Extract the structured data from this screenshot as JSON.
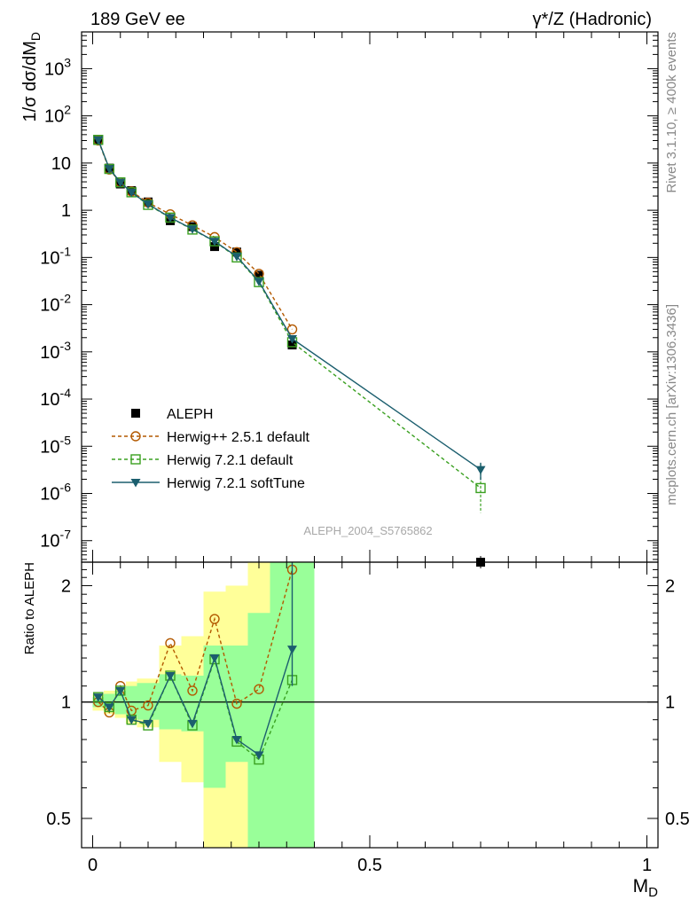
{
  "header": {
    "left_title": "189 GeV ee",
    "right_title": "γ*/Z (Hadronic)"
  },
  "side_text": {
    "rivet": "Rivet 3.1.10, ≥ 400k events",
    "mcplots": "mcplots.cern.ch [arXiv:1306.3436]"
  },
  "colors": {
    "aleph": "#000000",
    "herwigpp": "#b35900",
    "herwig721_default": "#3aa020",
    "herwig721_softtune": "#1b5e6e",
    "band_inner": "#99ff99",
    "band_outer": "#ffff99"
  },
  "chart_data": [
    {
      "type": "line",
      "panel": "main",
      "ylabel": "1/σ  dσ/dM_D",
      "yscale": "log",
      "ylim": [
        3.5e-08,
        6000
      ],
      "xlim": [
        -0.02,
        1.02
      ],
      "y_tick_labels": [
        "10^-7",
        "10^-6",
        "10^-5",
        "10^-4",
        "10^-3",
        "10^-2",
        "10^-1",
        "1",
        "10",
        "10^2",
        "10^3"
      ],
      "watermark": "ALEPH_2004_S5765862",
      "legend_position": "middle-left",
      "series": [
        {
          "name": "ALEPH",
          "style": "marker-square",
          "x": [
            0.01,
            0.03,
            0.05,
            0.07,
            0.1,
            0.14,
            0.18,
            0.22,
            0.26,
            0.3,
            0.36,
            0.7
          ],
          "y": [
            30,
            7.8,
            3.6,
            2.6,
            1.5,
            0.6,
            0.45,
            0.17,
            0.13,
            0.042,
            0.0014,
            3.5e-08
          ]
        },
        {
          "name": "Herwig++ 2.5.1 default",
          "style": "dashed-circle",
          "x": [
            0.01,
            0.03,
            0.05,
            0.07,
            0.1,
            0.14,
            0.18,
            0.22,
            0.26,
            0.3,
            0.36
          ],
          "y": [
            30,
            7.3,
            3.9,
            2.5,
            1.45,
            0.82,
            0.48,
            0.27,
            0.13,
            0.045,
            0.003
          ]
        },
        {
          "name": "Herwig 7.2.1 default",
          "style": "dashed-square",
          "x": [
            0.01,
            0.03,
            0.05,
            0.07,
            0.1,
            0.14,
            0.18,
            0.22,
            0.26,
            0.3,
            0.36,
            0.7
          ],
          "y": [
            31,
            7.5,
            3.9,
            2.4,
            1.3,
            0.7,
            0.39,
            0.22,
            0.1,
            0.03,
            0.0016,
            1.3e-06
          ]
        },
        {
          "name": "Herwig 7.2.1 softTune",
          "style": "solid-triangle",
          "x": [
            0.01,
            0.03,
            0.05,
            0.07,
            0.1,
            0.14,
            0.18,
            0.22,
            0.26,
            0.3,
            0.36,
            0.7
          ],
          "y": [
            31,
            7.6,
            3.9,
            2.4,
            1.35,
            0.7,
            0.4,
            0.22,
            0.105,
            0.031,
            0.0019,
            3.2e-06
          ]
        }
      ]
    },
    {
      "type": "line",
      "panel": "ratio",
      "xlabel": "M_D",
      "ylabel": "Ratio to ALEPH",
      "yscale": "log",
      "ylim": [
        0.42,
        2.3
      ],
      "xlim": [
        -0.02,
        1.02
      ],
      "x_ticks": [
        0,
        0.5,
        1
      ],
      "x_tick_labels": [
        "0",
        "0.5",
        "1"
      ],
      "y_ticks": [
        0.5,
        1,
        2
      ],
      "y_tick_labels": [
        "0.5",
        "1",
        "2"
      ],
      "bands": [
        {
          "x0": 0.0,
          "x1": 0.02,
          "inner": [
            0.97,
            1.03
          ],
          "outer": [
            0.95,
            1.05
          ]
        },
        {
          "x0": 0.02,
          "x1": 0.04,
          "inner": [
            0.95,
            1.05
          ],
          "outer": [
            0.93,
            1.07
          ]
        },
        {
          "x0": 0.04,
          "x1": 0.06,
          "inner": [
            0.93,
            1.07
          ],
          "outer": [
            0.91,
            1.09
          ]
        },
        {
          "x0": 0.06,
          "x1": 0.08,
          "inner": [
            0.92,
            1.1
          ],
          "outer": [
            0.88,
            1.13
          ]
        },
        {
          "x0": 0.08,
          "x1": 0.12,
          "inner": [
            0.9,
            1.12
          ],
          "outer": [
            0.86,
            1.15
          ]
        },
        {
          "x0": 0.12,
          "x1": 0.16,
          "inner": [
            0.85,
            1.18
          ],
          "outer": [
            0.7,
            1.4
          ]
        },
        {
          "x0": 0.16,
          "x1": 0.2,
          "inner": [
            0.84,
            1.17
          ],
          "outer": [
            0.62,
            1.48
          ]
        },
        {
          "x0": 0.2,
          "x1": 0.24,
          "inner": [
            0.6,
            1.4
          ],
          "outer": [
            0.42,
            1.93
          ]
        },
        {
          "x0": 0.24,
          "x1": 0.28,
          "inner": [
            0.7,
            1.4
          ],
          "outer": [
            0.42,
            2.0
          ]
        },
        {
          "x0": 0.28,
          "x1": 0.32,
          "inner": [
            0.42,
            1.7
          ],
          "outer": [
            0.42,
            2.3
          ]
        },
        {
          "x0": 0.32,
          "x1": 0.4,
          "inner": [
            0.42,
            2.3
          ],
          "outer": [
            0.42,
            2.3
          ]
        }
      ],
      "series": [
        {
          "name": "Herwig++ 2.5.1 default",
          "style": "dashed-circle",
          "x": [
            0.01,
            0.03,
            0.05,
            0.07,
            0.1,
            0.14,
            0.18,
            0.22,
            0.26,
            0.3,
            0.36
          ],
          "y": [
            1.0,
            0.94,
            1.1,
            0.95,
            0.98,
            1.42,
            1.07,
            1.64,
            0.99,
            1.08,
            2.2
          ]
        },
        {
          "name": "Herwig 7.2.1 default",
          "style": "dashed-square",
          "x": [
            0.01,
            0.03,
            0.05,
            0.07,
            0.1,
            0.14,
            0.18,
            0.22,
            0.26,
            0.3,
            0.36
          ],
          "y": [
            1.03,
            0.97,
            1.07,
            0.9,
            0.87,
            1.17,
            0.87,
            1.29,
            0.79,
            0.71,
            1.14
          ]
        },
        {
          "name": "Herwig 7.2.1 softTune",
          "style": "solid-triangle",
          "x": [
            0.01,
            0.03,
            0.05,
            0.07,
            0.1,
            0.14,
            0.18,
            0.22,
            0.26,
            0.3,
            0.36
          ],
          "y": [
            1.03,
            0.97,
            1.07,
            0.9,
            0.88,
            1.17,
            0.88,
            1.3,
            0.8,
            0.73,
            1.37
          ]
        }
      ]
    }
  ]
}
